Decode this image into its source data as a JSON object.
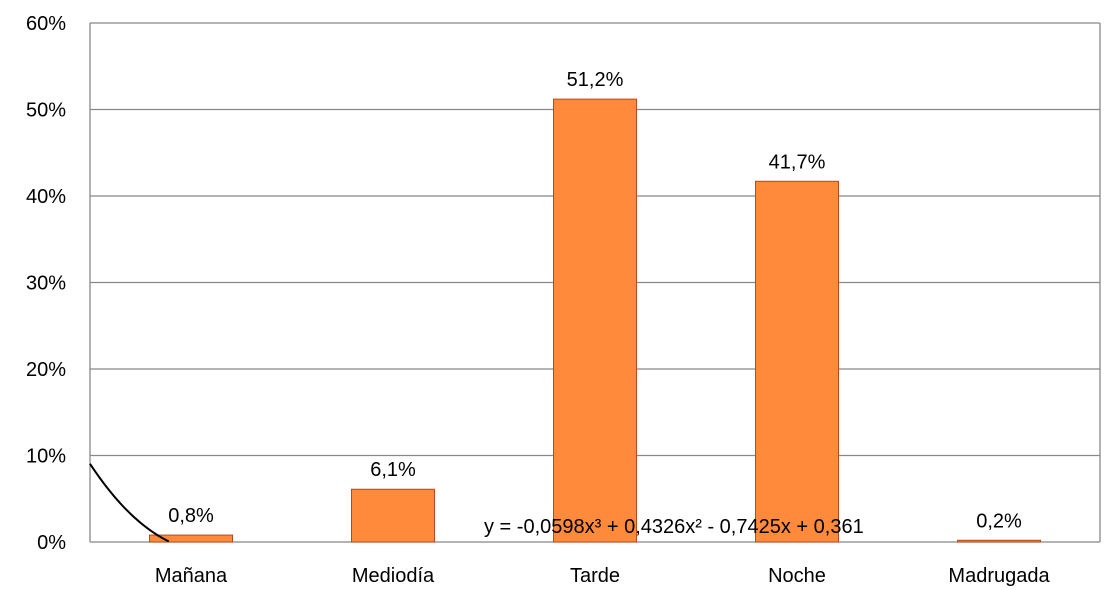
{
  "chart_data": {
    "type": "bar",
    "categories": [
      "Mañana",
      "Mediodía",
      "Tarde",
      "Noche",
      "Madrugada"
    ],
    "values": [
      0.8,
      6.1,
      51.2,
      41.7,
      0.2
    ],
    "data_labels": [
      "0,8%",
      "6,1%",
      "51,2%",
      "41,7%",
      "0,2%"
    ],
    "ylim": [
      0,
      60
    ],
    "yticks": [
      0,
      10,
      20,
      30,
      40,
      50,
      60
    ],
    "ytick_labels": [
      "0%",
      "10%",
      "20%",
      "30%",
      "40%",
      "50%",
      "60%"
    ],
    "grid": true,
    "legend": false,
    "trendline": {
      "type": "polynomial",
      "order": 3,
      "coefficients": [
        -0.0598,
        0.4326,
        -0.7425,
        0.361
      ],
      "equation_label": "y = -0,0598x³ + 0,4326x² - 0,7425x + 0,361"
    },
    "colors": {
      "bar_fill": "#FF8A3C",
      "bar_stroke": "#B84A1A",
      "grid": "#888888",
      "axis": "#888888",
      "trendline": "#000000"
    }
  }
}
